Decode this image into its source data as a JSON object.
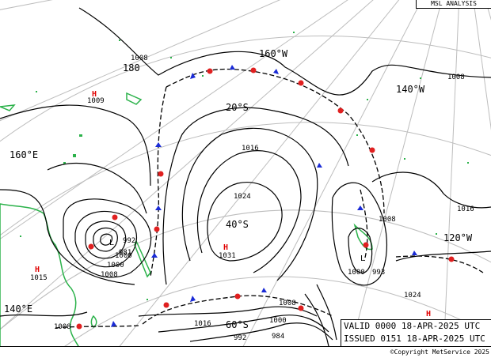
{
  "header": {
    "title": "MSL ANALYSIS"
  },
  "info": {
    "valid": "VALID  0000 18-APR-2025 UTC",
    "issued": "ISSUED 0151 18-APR-2025  UTC"
  },
  "copyright": "©Copyright MetService 2025",
  "graticule_labels": [
    "180",
    "160°W",
    "140°W",
    "120°W",
    "160°E",
    "140°E",
    "20°S",
    "40°S",
    "60°S"
  ],
  "pressure_labels": [
    "1008",
    "1008",
    "1008",
    "1008",
    "1016",
    "1024",
    "1016",
    "1000",
    "1008",
    "1000",
    "984",
    "992",
    "1000",
    "993",
    "1008",
    "1016",
    "1024",
    "1000",
    "992",
    "981"
  ],
  "pressure_centres": [
    {
      "type": "H",
      "value": "1009"
    },
    {
      "type": "H",
      "value": "1031"
    },
    {
      "type": "H",
      "value": "1015"
    },
    {
      "type": "H",
      "value": "1024"
    },
    {
      "type": "L",
      "value": "981"
    },
    {
      "type": "L",
      "value": "993"
    }
  ],
  "colors": {
    "isobar": "#000000",
    "graticule": "#b8b8b8",
    "land": "#2bb24a",
    "high": "#e00000",
    "cold_front": "#1a2bd6",
    "warm_front": "#e02020"
  }
}
